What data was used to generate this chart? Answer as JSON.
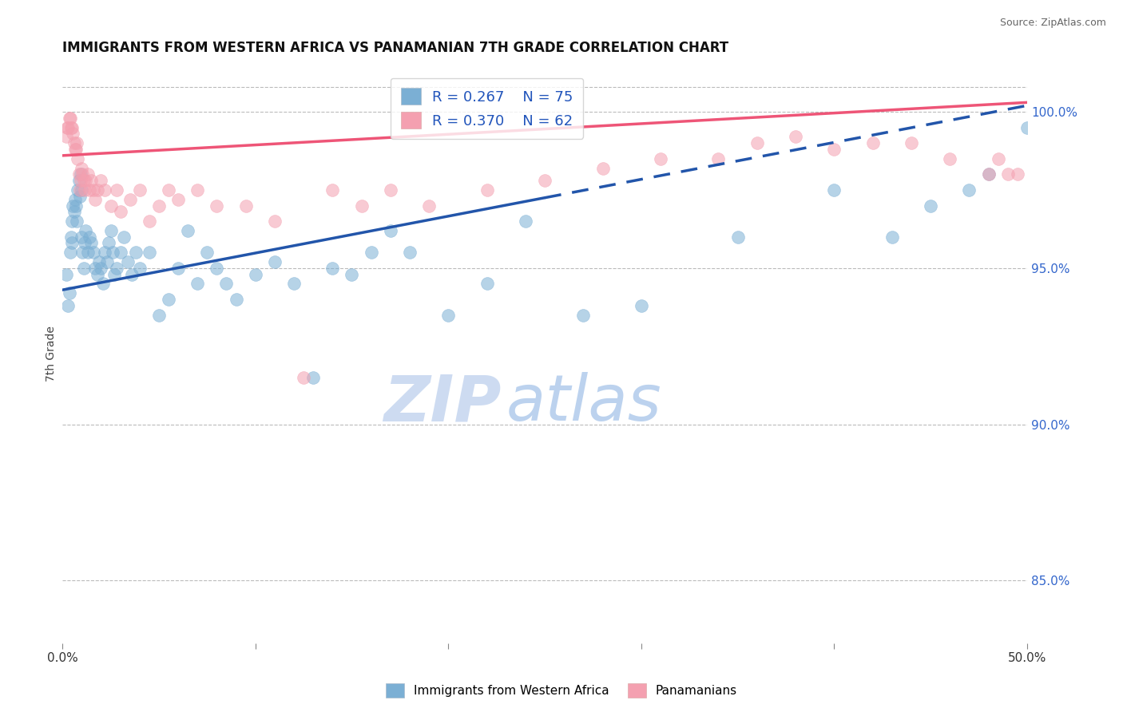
{
  "title": "IMMIGRANTS FROM WESTERN AFRICA VS PANAMANIAN 7TH GRADE CORRELATION CHART",
  "source_text": "Source: ZipAtlas.com",
  "ylabel": "7th Grade",
  "xmin": 0.0,
  "xmax": 50.0,
  "ymin": 83.0,
  "ymax": 101.5,
  "yticks": [
    85.0,
    90.0,
    95.0,
    100.0
  ],
  "xticks": [
    0.0,
    10.0,
    20.0,
    30.0,
    40.0,
    50.0
  ],
  "blue_color": "#7BAFD4",
  "pink_color": "#F4A0B0",
  "blue_line_color": "#2255AA",
  "pink_line_color": "#EE5577",
  "legend_R_blue": "R = 0.267",
  "legend_N_blue": "N = 75",
  "legend_R_pink": "R = 0.370",
  "legend_N_pink": "N = 62",
  "legend_label_blue": "Immigrants from Western Africa",
  "legend_label_pink": "Panamanians",
  "watermark_zip": "ZIP",
  "watermark_atlas": "atlas",
  "blue_trend_x0": 0.0,
  "blue_trend_y0": 94.3,
  "blue_trend_x1": 50.0,
  "blue_trend_y1": 100.2,
  "blue_solid_end": 25.0,
  "pink_trend_x0": 0.0,
  "pink_trend_y0": 98.6,
  "pink_trend_x1": 50.0,
  "pink_trend_y1": 100.3,
  "blue_x": [
    0.2,
    0.3,
    0.35,
    0.4,
    0.45,
    0.5,
    0.5,
    0.55,
    0.6,
    0.65,
    0.7,
    0.75,
    0.8,
    0.85,
    0.9,
    0.95,
    1.0,
    1.0,
    1.05,
    1.1,
    1.15,
    1.2,
    1.3,
    1.4,
    1.5,
    1.6,
    1.7,
    1.8,
    1.9,
    2.0,
    2.1,
    2.2,
    2.3,
    2.4,
    2.5,
    2.6,
    2.7,
    2.8,
    3.0,
    3.2,
    3.4,
    3.6,
    3.8,
    4.0,
    4.5,
    5.0,
    5.5,
    6.0,
    6.5,
    7.0,
    7.5,
    8.0,
    8.5,
    9.0,
    10.0,
    11.0,
    12.0,
    13.0,
    14.0,
    15.0,
    16.0,
    17.0,
    18.0,
    20.0,
    22.0,
    24.0,
    27.0,
    30.0,
    35.0,
    40.0,
    43.0,
    45.0,
    47.0,
    48.0,
    50.0
  ],
  "blue_y": [
    94.8,
    93.8,
    94.2,
    95.5,
    96.0,
    95.8,
    96.5,
    97.0,
    96.8,
    97.2,
    97.0,
    96.5,
    97.5,
    97.8,
    97.3,
    98.0,
    97.5,
    96.0,
    95.5,
    95.0,
    95.8,
    96.2,
    95.5,
    96.0,
    95.8,
    95.5,
    95.0,
    94.8,
    95.2,
    95.0,
    94.5,
    95.5,
    95.2,
    95.8,
    96.2,
    95.5,
    94.8,
    95.0,
    95.5,
    96.0,
    95.2,
    94.8,
    95.5,
    95.0,
    95.5,
    93.5,
    94.0,
    95.0,
    96.2,
    94.5,
    95.5,
    95.0,
    94.5,
    94.0,
    94.8,
    95.2,
    94.5,
    91.5,
    95.0,
    94.8,
    95.5,
    96.2,
    95.5,
    93.5,
    94.5,
    96.5,
    93.5,
    93.8,
    96.0,
    97.5,
    96.0,
    97.0,
    97.5,
    98.0,
    99.5
  ],
  "pink_x": [
    0.2,
    0.25,
    0.3,
    0.35,
    0.4,
    0.45,
    0.5,
    0.55,
    0.6,
    0.65,
    0.7,
    0.75,
    0.8,
    0.85,
    0.9,
    0.95,
    1.0,
    1.05,
    1.1,
    1.15,
    1.2,
    1.3,
    1.4,
    1.5,
    1.6,
    1.7,
    1.8,
    2.0,
    2.2,
    2.5,
    2.8,
    3.0,
    3.5,
    4.0,
    4.5,
    5.0,
    5.5,
    6.0,
    7.0,
    8.0,
    9.5,
    11.0,
    12.5,
    14.0,
    15.5,
    17.0,
    19.0,
    22.0,
    25.0,
    28.0,
    31.0,
    34.0,
    36.0,
    38.0,
    40.0,
    42.0,
    44.0,
    46.0,
    48.0,
    48.5,
    49.0,
    49.5
  ],
  "pink_y": [
    99.2,
    99.5,
    99.5,
    99.8,
    99.8,
    99.5,
    99.5,
    99.3,
    99.0,
    98.8,
    98.8,
    99.0,
    98.5,
    98.0,
    97.5,
    97.8,
    98.2,
    98.0,
    97.8,
    97.5,
    97.8,
    98.0,
    97.5,
    97.8,
    97.5,
    97.2,
    97.5,
    97.8,
    97.5,
    97.0,
    97.5,
    96.8,
    97.2,
    97.5,
    96.5,
    97.0,
    97.5,
    97.2,
    97.5,
    97.0,
    97.0,
    96.5,
    91.5,
    97.5,
    97.0,
    97.5,
    97.0,
    97.5,
    97.8,
    98.2,
    98.5,
    98.5,
    99.0,
    99.2,
    98.8,
    99.0,
    99.0,
    98.5,
    98.0,
    98.5,
    98.0,
    98.0
  ]
}
